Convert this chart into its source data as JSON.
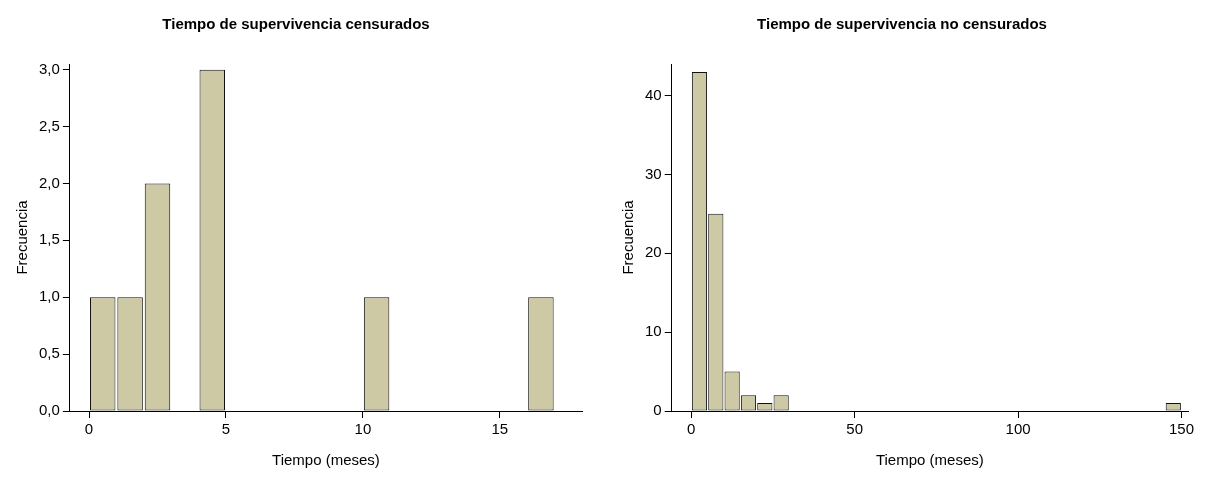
{
  "chart_data": [
    {
      "type": "histogram",
      "title": "Tiempo de supervivencia censurados",
      "xlabel": "Tiempo (meses)",
      "ylabel": "Frecuencia",
      "color": "#cdc9a5",
      "bins": [
        0,
        1,
        2,
        3,
        4,
        5,
        6,
        7,
        8,
        9,
        10,
        11,
        12,
        13,
        14,
        15,
        16,
        17
      ],
      "values": [
        1,
        1,
        2,
        0,
        3,
        0,
        0,
        0,
        0,
        0,
        1,
        0,
        0,
        0,
        0,
        0,
        1
      ],
      "xlim": [
        -0.7,
        18
      ],
      "xticks": [
        0,
        5,
        10,
        15
      ],
      "ylim": [
        0,
        3.05
      ],
      "yticks": [
        {
          "value": 0,
          "label": "0,0"
        },
        {
          "value": 0.5,
          "label": "0,5"
        },
        {
          "value": 1,
          "label": "1,0"
        },
        {
          "value": 1.5,
          "label": "1,5"
        },
        {
          "value": 2,
          "label": "2,0"
        },
        {
          "value": 2.5,
          "label": "2,5"
        },
        {
          "value": 3,
          "label": "3,0"
        }
      ],
      "grid": false,
      "legend": false
    },
    {
      "type": "histogram",
      "title": "Tiempo de supervivencia no censurados",
      "xlabel": "Tiempo (meses)",
      "ylabel": "Frecuencia",
      "color": "#cdc9a5",
      "bins": [
        0,
        5,
        10,
        15,
        20,
        25,
        30,
        35,
        40,
        45,
        50,
        55,
        60,
        65,
        70,
        75,
        80,
        85,
        90,
        95,
        100,
        105,
        110,
        115,
        120,
        125,
        130,
        135,
        140,
        145,
        150
      ],
      "values": [
        43,
        25,
        5,
        2,
        1,
        2,
        0,
        0,
        0,
        0,
        0,
        0,
        0,
        0,
        0,
        0,
        0,
        0,
        0,
        0,
        0,
        0,
        0,
        0,
        0,
        0,
        0,
        0,
        0,
        1
      ],
      "xlim": [
        -6,
        152
      ],
      "xticks": [
        0,
        50,
        100,
        150
      ],
      "ylim": [
        0,
        44
      ],
      "yticks": [
        0,
        10,
        20,
        30,
        40
      ],
      "grid": false,
      "legend": false
    }
  ]
}
